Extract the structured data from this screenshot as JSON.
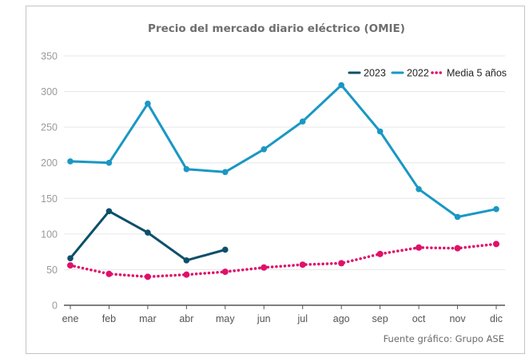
{
  "chart_data": {
    "type": "line",
    "title": "Precio del mercado diario eléctrico (OMIE)",
    "xlabel": "",
    "ylabel": "",
    "categories": [
      "ene",
      "feb",
      "mar",
      "abr",
      "may",
      "jun",
      "jul",
      "ago",
      "sep",
      "oct",
      "nov",
      "dic"
    ],
    "yticks": [
      0,
      50,
      100,
      150,
      200,
      250,
      300,
      350
    ],
    "ylim": [
      0,
      350
    ],
    "grid": true,
    "legend_position": "top-right",
    "series": [
      {
        "name": "2023",
        "color": "#0d4f6b",
        "style": "solid",
        "values": [
          66,
          132,
          102,
          63,
          78,
          null,
          null,
          null,
          null,
          null,
          null,
          null
        ]
      },
      {
        "name": "2022",
        "color": "#1a97c4",
        "style": "solid",
        "values": [
          202,
          200,
          283,
          191,
          187,
          219,
          258,
          309,
          244,
          163,
          124,
          135
        ]
      },
      {
        "name": "Media 5 años",
        "color": "#e0106a",
        "style": "dotted",
        "values": [
          56,
          44,
          40,
          43,
          47,
          53,
          57,
          59,
          72,
          81,
          80,
          86
        ]
      }
    ],
    "source": "Fuente gráfico: Grupo ASE"
  }
}
